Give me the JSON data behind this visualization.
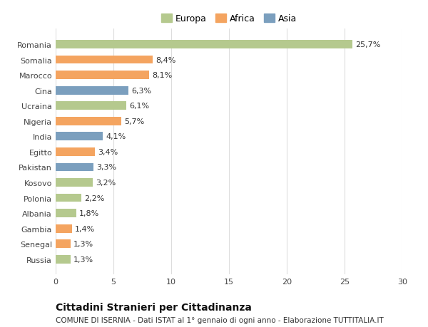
{
  "categories": [
    "Russia",
    "Senegal",
    "Gambia",
    "Albania",
    "Polonia",
    "Kosovo",
    "Pakistan",
    "Egitto",
    "India",
    "Nigeria",
    "Ucraina",
    "Cina",
    "Marocco",
    "Somalia",
    "Romania"
  ],
  "values": [
    1.3,
    1.3,
    1.4,
    1.8,
    2.2,
    3.2,
    3.3,
    3.4,
    4.1,
    5.7,
    6.1,
    6.3,
    8.1,
    8.4,
    25.7
  ],
  "labels": [
    "1,3%",
    "1,3%",
    "1,4%",
    "1,8%",
    "2,2%",
    "3,2%",
    "3,3%",
    "3,4%",
    "4,1%",
    "5,7%",
    "6,1%",
    "6,3%",
    "8,1%",
    "8,4%",
    "25,7%"
  ],
  "colors": [
    "#b5c98e",
    "#f4a460",
    "#f4a460",
    "#b5c98e",
    "#b5c98e",
    "#b5c98e",
    "#7b9fbe",
    "#f4a460",
    "#7b9fbe",
    "#f4a460",
    "#b5c98e",
    "#7b9fbe",
    "#f4a460",
    "#f4a460",
    "#b5c98e"
  ],
  "legend_labels": [
    "Europa",
    "Africa",
    "Asia"
  ],
  "legend_colors": [
    "#b5c98e",
    "#f4a460",
    "#7b9fbe"
  ],
  "title": "Cittadini Stranieri per Cittadinanza",
  "subtitle": "COMUNE DI ISERNIA - Dati ISTAT al 1° gennaio di ogni anno - Elaborazione TUTTITALIA.IT",
  "xlim": [
    0,
    30
  ],
  "xticks": [
    0,
    5,
    10,
    15,
    20,
    25,
    30
  ],
  "bg_color": "#ffffff",
  "bar_height": 0.55,
  "label_fontsize": 8,
  "title_fontsize": 10,
  "subtitle_fontsize": 7.5,
  "tick_fontsize": 8,
  "legend_fontsize": 9
}
